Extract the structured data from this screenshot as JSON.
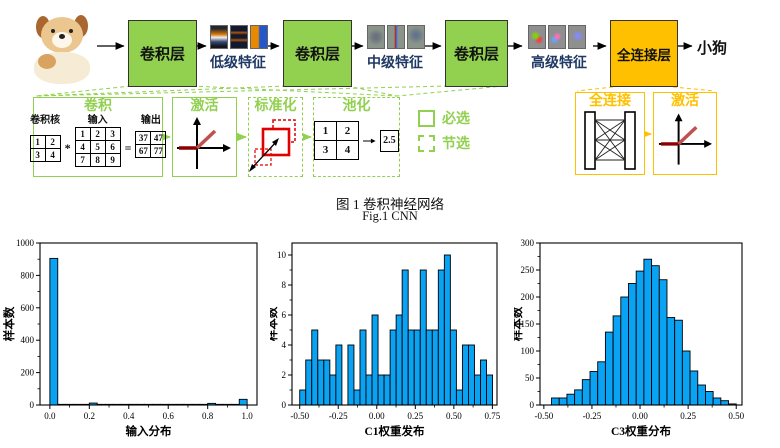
{
  "pipeline": {
    "conv1": "卷积层",
    "conv2": "卷积层",
    "conv3": "卷积层",
    "fc": "全连接层",
    "feat_low": "低级特征",
    "feat_mid": "中级特征",
    "feat_high": "高级特征",
    "output": "小狗"
  },
  "blocks": {
    "conv": {
      "title": "卷积",
      "kernel_label": "卷积核",
      "input_label": "输入",
      "output_label": "输出",
      "op_mul": "*",
      "op_eq": "=",
      "kernel": [
        [
          1,
          2
        ],
        [
          3,
          4
        ]
      ],
      "input": [
        [
          1,
          2,
          3
        ],
        [
          4,
          5,
          6
        ],
        [
          7,
          8,
          9
        ]
      ],
      "output": [
        [
          37,
          47
        ],
        [
          67,
          77
        ]
      ]
    },
    "act1": {
      "title": "激活"
    },
    "norm": {
      "title": "标准化"
    },
    "pool": {
      "title": "池化",
      "matrix": [
        [
          1,
          2
        ],
        [
          3,
          4
        ]
      ],
      "result": "2.5"
    },
    "fc": {
      "title": "全连接"
    },
    "act2": {
      "title": "激活"
    }
  },
  "legend": {
    "required": "必选",
    "optional": "节选"
  },
  "caption": {
    "zh": "图 1  卷积神经网络",
    "en": "Fig.1 CNN"
  },
  "colors": {
    "green_fill": "#92d050",
    "orange_fill": "#ffc000",
    "bar": "#0aa2f2",
    "relu_red": "#c00000",
    "feature_label": "#1f3864"
  },
  "chart_data": [
    {
      "type": "bar",
      "title": "",
      "xlabel": "输入分布",
      "ylabel": "样本数",
      "bin_start": 0.0,
      "bin_width": 0.04,
      "values": [
        905,
        4,
        4,
        4,
        4,
        12,
        4,
        4,
        4,
        4,
        4,
        4,
        4,
        4,
        4,
        4,
        4,
        4,
        4,
        4,
        10,
        4,
        4,
        4,
        35
      ],
      "xlim": [
        -0.05,
        1.05
      ],
      "ylim": [
        0,
        1000
      ],
      "xticks": [
        0.0,
        0.2,
        0.4,
        0.6,
        0.8,
        1.0
      ],
      "xtick_labels": [
        "0.0",
        "0.2",
        "0.4",
        "0.6",
        "0.8",
        "1.0"
      ],
      "xminor": [
        0.1,
        0.3,
        0.5,
        0.7,
        0.9
      ],
      "yticks": [
        0,
        200,
        400,
        600,
        800,
        1000
      ],
      "ytick_labels": [
        "0",
        "200",
        "400",
        "600",
        "800",
        "1000"
      ],
      "yminor": [
        100,
        300,
        500,
        700,
        900
      ],
      "grid": false,
      "legend": "none"
    },
    {
      "type": "bar",
      "title": "",
      "xlabel": "C1权重发布",
      "ylabel": "样本数",
      "bin_start": -0.5,
      "bin_width": 0.0391,
      "values": [
        1,
        3,
        5,
        3,
        3,
        2,
        4,
        0,
        4,
        1,
        5,
        2,
        6,
        2,
        2,
        5,
        6,
        9,
        5,
        5,
        9,
        5,
        5,
        9,
        10,
        5,
        1,
        4,
        4,
        2,
        3,
        2
      ],
      "xlim": [
        -0.55,
        0.78
      ],
      "ylim": [
        0,
        10.8
      ],
      "xticks": [
        -0.5,
        -0.25,
        0.0,
        0.25,
        0.5,
        0.75
      ],
      "xtick_labels": [
        "-0.50",
        "-0.25",
        "0.00",
        "0.25",
        "0.50",
        "0.75"
      ],
      "xminor": [
        -0.375,
        -0.125,
        0.125,
        0.375,
        0.625
      ],
      "yticks": [
        0,
        2,
        4,
        6,
        8,
        10
      ],
      "ytick_labels": [
        "0",
        "2",
        "4",
        "6",
        "8",
        "10"
      ],
      "yminor": [
        1,
        3,
        5,
        7,
        9
      ],
      "grid": false,
      "legend": "none"
    },
    {
      "type": "bar",
      "title": "",
      "xlabel": "C3权重分布",
      "ylabel": "样本数",
      "bin_start": -0.46,
      "bin_width": 0.04,
      "values": [
        13,
        13,
        20,
        28,
        47,
        62,
        80,
        135,
        165,
        200,
        225,
        248,
        270,
        258,
        232,
        162,
        157,
        100,
        63,
        37,
        25,
        13,
        8,
        2
      ],
      "xlim": [
        -0.52,
        0.53
      ],
      "ylim": [
        0,
        300
      ],
      "xticks": [
        -0.5,
        -0.25,
        0.0,
        0.25,
        0.5
      ],
      "xtick_labels": [
        "-0.50",
        "-0.25",
        "0.00",
        "0.25",
        "0.50"
      ],
      "xminor": [
        -0.375,
        -0.125,
        0.125,
        0.375
      ],
      "yticks": [
        0,
        50,
        100,
        150,
        200,
        250,
        300
      ],
      "ytick_labels": [
        "0",
        "50",
        "100",
        "150",
        "200",
        "250",
        "300"
      ],
      "yminor": [
        25,
        75,
        125,
        175,
        225,
        275
      ],
      "grid": false,
      "legend": "none"
    }
  ]
}
